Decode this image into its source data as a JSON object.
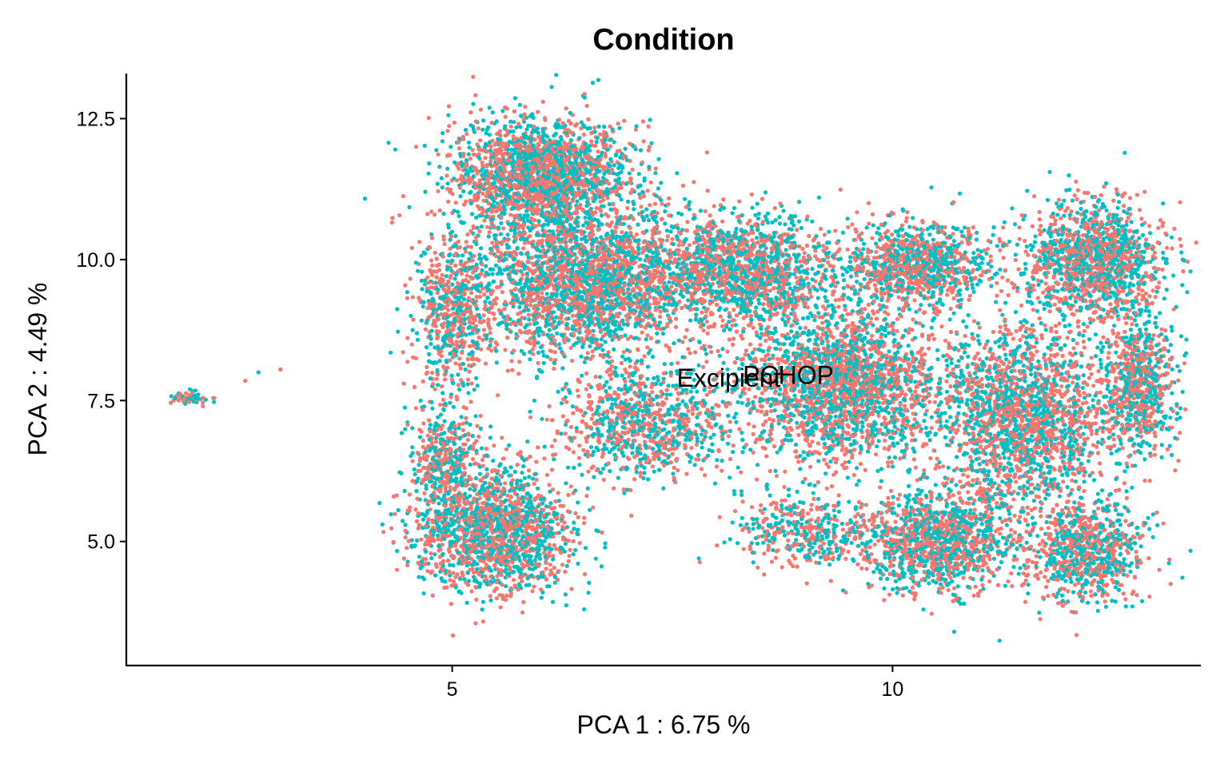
{
  "chart_data": {
    "type": "scatter",
    "title": "Condition",
    "xlabel": "PCA 1 : 6.75 %",
    "ylabel": "PCA 2 : 4.49 %",
    "xlim": [
      1.3,
      13.5
    ],
    "ylim": [
      2.8,
      13.3
    ],
    "xticks": [
      5,
      10
    ],
    "xtick_labels": [
      "5",
      "10"
    ],
    "yticks": [
      5.0,
      7.5,
      10.0,
      12.5
    ],
    "ytick_labels": [
      "5.0",
      "7.5",
      "10.0",
      "12.5"
    ],
    "grid": false,
    "legend": "none",
    "series": [
      {
        "name": "Excipient",
        "color": "#F8766D"
      },
      {
        "name": "PCHOP",
        "color": "#00BFC4"
      }
    ],
    "annotations": [
      {
        "text": "Excipient",
        "x": 7.55,
        "y": 7.9
      },
      {
        "text": "PCHOP",
        "x": 8.3,
        "y": 7.95
      }
    ],
    "clusters": [
      {
        "cx": 6.0,
        "cy": 11.5,
        "rx": 0.9,
        "ry": 0.9,
        "n": 2000
      },
      {
        "cx": 6.5,
        "cy": 9.6,
        "rx": 1.1,
        "ry": 1.2,
        "n": 2400
      },
      {
        "cx": 5.0,
        "cy": 9.0,
        "rx": 0.4,
        "ry": 1.3,
        "n": 600
      },
      {
        "cx": 5.5,
        "cy": 5.2,
        "rx": 0.8,
        "ry": 1.0,
        "n": 1600
      },
      {
        "cx": 4.9,
        "cy": 6.4,
        "rx": 0.35,
        "ry": 0.9,
        "n": 400
      },
      {
        "cx": 7.2,
        "cy": 7.1,
        "rx": 0.9,
        "ry": 0.9,
        "n": 900
      },
      {
        "cx": 8.3,
        "cy": 9.8,
        "rx": 1.0,
        "ry": 0.9,
        "n": 1500
      },
      {
        "cx": 9.4,
        "cy": 7.8,
        "rx": 1.0,
        "ry": 1.2,
        "n": 2200
      },
      {
        "cx": 10.3,
        "cy": 9.9,
        "rx": 0.7,
        "ry": 0.7,
        "n": 1000
      },
      {
        "cx": 10.5,
        "cy": 5.0,
        "rx": 0.8,
        "ry": 0.8,
        "n": 1200
      },
      {
        "cx": 11.5,
        "cy": 7.2,
        "rx": 0.9,
        "ry": 1.5,
        "n": 2000
      },
      {
        "cx": 12.3,
        "cy": 10.0,
        "rx": 0.7,
        "ry": 0.9,
        "n": 1300
      },
      {
        "cx": 12.8,
        "cy": 7.8,
        "rx": 0.35,
        "ry": 1.1,
        "n": 700
      },
      {
        "cx": 12.2,
        "cy": 4.8,
        "rx": 0.6,
        "ry": 0.8,
        "n": 800
      },
      {
        "cx": 9.0,
        "cy": 5.2,
        "rx": 0.7,
        "ry": 0.6,
        "n": 400
      },
      {
        "cx": 2.0,
        "cy": 7.55,
        "rx": 0.2,
        "ry": 0.12,
        "n": 60
      }
    ],
    "outliers": [
      [
        2.65,
        7.85
      ],
      [
        2.8,
        8.0
      ],
      [
        3.05,
        8.05
      ],
      [
        4.3,
        8.35
      ],
      [
        4.45,
        7.8
      ],
      [
        5.9,
        4.4
      ],
      [
        6.4,
        5.5
      ],
      [
        7.8,
        4.7
      ],
      [
        9.3,
        4.3
      ],
      [
        10.7,
        3.4
      ]
    ]
  }
}
